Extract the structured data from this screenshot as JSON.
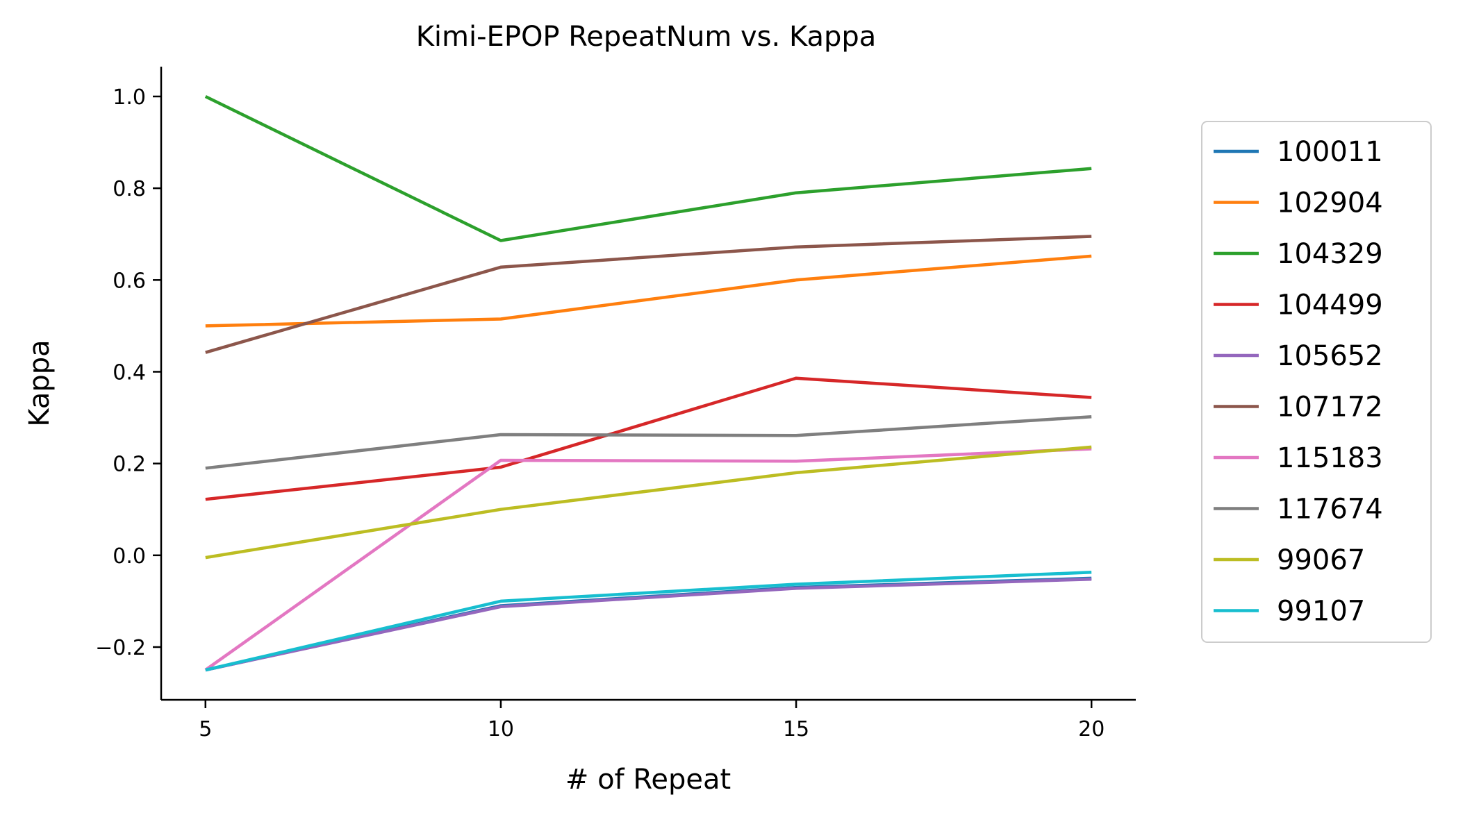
{
  "chart_data": {
    "type": "line",
    "title": "Kimi-EPOP RepeatNum vs. Kappa",
    "xlabel": "# of Repeat",
    "ylabel": "Kappa",
    "x": [
      5,
      10,
      15,
      20
    ],
    "xticks": [
      5,
      10,
      15,
      20
    ],
    "xtick_labels": [
      "5",
      "10",
      "15",
      "20"
    ],
    "yticks": [
      -0.2,
      0.0,
      0.2,
      0.4,
      0.6,
      0.8,
      1.0
    ],
    "ytick_labels": [
      "−0.2",
      "0.0",
      "0.2",
      "0.4",
      "0.6",
      "0.8",
      "1.0"
    ],
    "xlim": [
      4.25,
      20.75
    ],
    "ylim": [
      -0.315,
      1.065
    ],
    "grid": false,
    "legend_position": "right, outside plot",
    "series": [
      {
        "name": "100011",
        "color": "#1f77b4",
        "values": [
          -0.25,
          -0.11,
          -0.07,
          -0.05
        ]
      },
      {
        "name": "102904",
        "color": "#ff7f0e",
        "values": [
          0.5,
          0.515,
          0.6,
          0.652
        ]
      },
      {
        "name": "104329",
        "color": "#2ca02c",
        "values": [
          1.0,
          0.686,
          0.79,
          0.843
        ]
      },
      {
        "name": "104499",
        "color": "#d62728",
        "values": [
          0.122,
          0.192,
          0.386,
          0.344
        ]
      },
      {
        "name": "105652",
        "color": "#9467bd",
        "values": [
          -0.25,
          -0.112,
          -0.072,
          -0.052
        ]
      },
      {
        "name": "107172",
        "color": "#8c564b",
        "values": [
          0.442,
          0.628,
          0.672,
          0.695
        ]
      },
      {
        "name": "115183",
        "color": "#e377c2",
        "values": [
          -0.25,
          0.207,
          0.205,
          0.232
        ]
      },
      {
        "name": "117674",
        "color": "#7f7f7f",
        "values": [
          0.19,
          0.263,
          0.261,
          0.302
        ]
      },
      {
        "name": "99067",
        "color": "#bcbd22",
        "values": [
          -0.005,
          0.1,
          0.18,
          0.236
        ]
      },
      {
        "name": "99107",
        "color": "#17becf",
        "values": [
          -0.25,
          -0.1,
          -0.063,
          -0.037
        ]
      }
    ]
  }
}
